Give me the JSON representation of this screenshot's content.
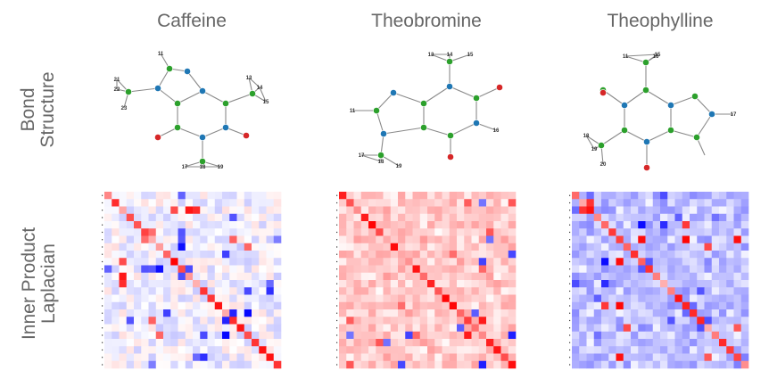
{
  "columns": [
    "Caffeine",
    "Theobromine",
    "Theophylline"
  ],
  "rows": {
    "bond_line1": "Bond",
    "bond_line2": "Structure",
    "lap_line1": "Inner Product",
    "lap_line2": "Laplacian"
  },
  "colors": {
    "carbon": "#2ca02c",
    "nitrogen": "#1f77b4",
    "oxygen": "#d62728",
    "hydrogen": "#888888",
    "positive": "#ff0000",
    "negative": "#0000ff"
  },
  "molecules": [
    {
      "name": "Caffeine",
      "h_labels": [
        "11",
        "17",
        "18",
        "19",
        "13",
        "14",
        "15",
        "21",
        "22",
        "23"
      ]
    },
    {
      "name": "Theobromine",
      "h_labels": [
        "11",
        "13",
        "14",
        "15",
        "16",
        "17",
        "18",
        "19"
      ]
    },
    {
      "name": "Theophylline",
      "h_labels": [
        "11",
        "15",
        "16",
        "17",
        "18",
        "19",
        "20"
      ]
    }
  ]
}
